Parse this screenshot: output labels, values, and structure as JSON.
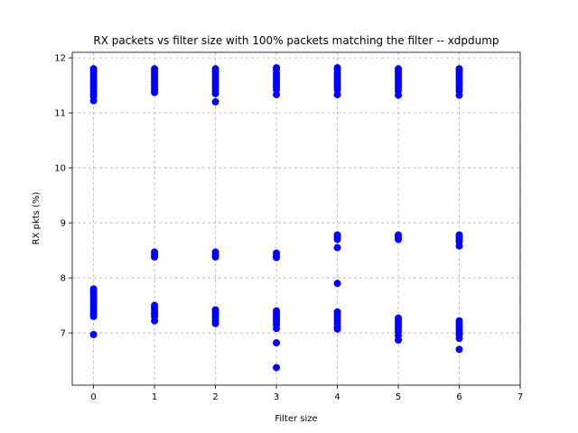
{
  "chart_data": {
    "type": "scatter",
    "title": "RX packets vs filter size with 100% packets matching the filter -- xdpdump",
    "xlabel": "Filter size",
    "ylabel": "RX pkts (%)",
    "xlim": [
      -0.35,
      7.0
    ],
    "ylim": [
      6.05,
      12.1
    ],
    "xticks": [
      0,
      1,
      2,
      3,
      4,
      5,
      6,
      7
    ],
    "yticks": [
      7,
      8,
      9,
      10,
      11,
      12
    ],
    "grid": true,
    "marker_color": "#0000ff",
    "series": [
      {
        "points": [
          [
            0,
            11.8
          ],
          [
            0,
            11.75
          ],
          [
            0,
            11.7
          ],
          [
            0,
            11.65
          ],
          [
            0,
            11.6
          ],
          [
            0,
            11.55
          ],
          [
            0,
            11.5
          ],
          [
            0,
            11.45
          ],
          [
            0,
            11.4
          ],
          [
            0,
            11.35
          ],
          [
            0,
            11.3
          ],
          [
            0,
            11.22
          ],
          [
            0,
            7.8
          ],
          [
            0,
            7.75
          ],
          [
            0,
            7.7
          ],
          [
            0,
            7.65
          ],
          [
            0,
            7.6
          ],
          [
            0,
            7.55
          ],
          [
            0,
            7.5
          ],
          [
            0,
            7.45
          ],
          [
            0,
            7.4
          ],
          [
            0,
            7.35
          ],
          [
            0,
            7.3
          ],
          [
            0,
            6.97
          ],
          [
            1,
            11.8
          ],
          [
            1,
            11.75
          ],
          [
            1,
            11.7
          ],
          [
            1,
            11.65
          ],
          [
            1,
            11.6
          ],
          [
            1,
            11.55
          ],
          [
            1,
            11.5
          ],
          [
            1,
            11.45
          ],
          [
            1,
            11.4
          ],
          [
            1,
            11.37
          ],
          [
            1,
            8.47
          ],
          [
            1,
            8.42
          ],
          [
            1,
            8.38
          ],
          [
            1,
            7.5
          ],
          [
            1,
            7.45
          ],
          [
            1,
            7.4
          ],
          [
            1,
            7.35
          ],
          [
            1,
            7.3
          ],
          [
            1,
            7.22
          ],
          [
            2,
            11.8
          ],
          [
            2,
            11.75
          ],
          [
            2,
            11.7
          ],
          [
            2,
            11.65
          ],
          [
            2,
            11.6
          ],
          [
            2,
            11.55
          ],
          [
            2,
            11.5
          ],
          [
            2,
            11.45
          ],
          [
            2,
            11.4
          ],
          [
            2,
            11.35
          ],
          [
            2,
            11.2
          ],
          [
            2,
            8.47
          ],
          [
            2,
            8.42
          ],
          [
            2,
            8.38
          ],
          [
            2,
            7.42
          ],
          [
            2,
            7.38
          ],
          [
            2,
            7.33
          ],
          [
            2,
            7.28
          ],
          [
            2,
            7.22
          ],
          [
            2,
            7.17
          ],
          [
            3,
            11.82
          ],
          [
            3,
            11.78
          ],
          [
            3,
            11.72
          ],
          [
            3,
            11.67
          ],
          [
            3,
            11.62
          ],
          [
            3,
            11.57
          ],
          [
            3,
            11.52
          ],
          [
            3,
            11.47
          ],
          [
            3,
            11.42
          ],
          [
            3,
            11.33
          ],
          [
            3,
            8.45
          ],
          [
            3,
            8.4
          ],
          [
            3,
            8.37
          ],
          [
            3,
            7.4
          ],
          [
            3,
            7.35
          ],
          [
            3,
            7.3
          ],
          [
            3,
            7.25
          ],
          [
            3,
            7.2
          ],
          [
            3,
            7.15
          ],
          [
            3,
            7.08
          ],
          [
            3,
            6.82
          ],
          [
            3,
            6.37
          ],
          [
            4,
            11.82
          ],
          [
            4,
            11.78
          ],
          [
            4,
            11.72
          ],
          [
            4,
            11.67
          ],
          [
            4,
            11.62
          ],
          [
            4,
            11.57
          ],
          [
            4,
            11.52
          ],
          [
            4,
            11.47
          ],
          [
            4,
            11.42
          ],
          [
            4,
            11.33
          ],
          [
            4,
            8.78
          ],
          [
            4,
            8.74
          ],
          [
            4,
            8.7
          ],
          [
            4,
            8.55
          ],
          [
            4,
            7.9
          ],
          [
            4,
            7.38
          ],
          [
            4,
            7.33
          ],
          [
            4,
            7.28
          ],
          [
            4,
            7.23
          ],
          [
            4,
            7.18
          ],
          [
            4,
            7.12
          ],
          [
            4,
            7.07
          ],
          [
            5,
            11.8
          ],
          [
            5,
            11.75
          ],
          [
            5,
            11.7
          ],
          [
            5,
            11.65
          ],
          [
            5,
            11.6
          ],
          [
            5,
            11.55
          ],
          [
            5,
            11.5
          ],
          [
            5,
            11.45
          ],
          [
            5,
            11.4
          ],
          [
            5,
            11.32
          ],
          [
            5,
            8.78
          ],
          [
            5,
            8.74
          ],
          [
            5,
            8.7
          ],
          [
            5,
            7.27
          ],
          [
            5,
            7.22
          ],
          [
            5,
            7.17
          ],
          [
            5,
            7.12
          ],
          [
            5,
            7.07
          ],
          [
            5,
            7.02
          ],
          [
            5,
            6.95
          ],
          [
            5,
            6.87
          ],
          [
            6,
            11.8
          ],
          [
            6,
            11.75
          ],
          [
            6,
            11.7
          ],
          [
            6,
            11.65
          ],
          [
            6,
            11.6
          ],
          [
            6,
            11.55
          ],
          [
            6,
            11.5
          ],
          [
            6,
            11.45
          ],
          [
            6,
            11.4
          ],
          [
            6,
            11.32
          ],
          [
            6,
            8.78
          ],
          [
            6,
            8.74
          ],
          [
            6,
            8.7
          ],
          [
            6,
            8.66
          ],
          [
            6,
            8.58
          ],
          [
            6,
            7.22
          ],
          [
            6,
            7.17
          ],
          [
            6,
            7.12
          ],
          [
            6,
            7.07
          ],
          [
            6,
            7.02
          ],
          [
            6,
            6.97
          ],
          [
            6,
            6.9
          ],
          [
            6,
            6.7
          ]
        ]
      }
    ]
  }
}
